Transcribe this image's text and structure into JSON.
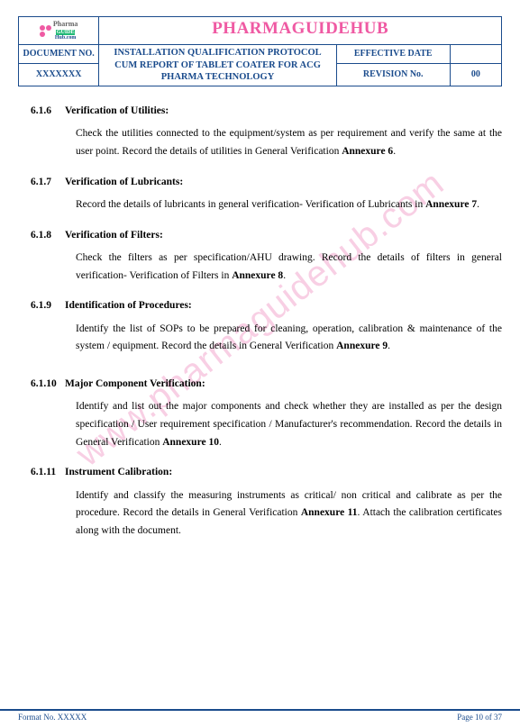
{
  "brand": {
    "title": "PHARMAGUIDEHUB",
    "logo_name_top": "Pharma",
    "logo_name_mid": "GUIDE",
    "logo_name_bot": "Hub.com",
    "dot_colors": [
      "#ef5aa3",
      "#ef5aa3",
      "#ef5aa3",
      "transparent"
    ]
  },
  "header": {
    "doc_no_label": "DOCUMENT NO.",
    "doc_no_value": "XXXXXXX",
    "title": "INSTALLATION QUALIFICATION PROTOCOL CUM REPORT OF TABLET COATER FOR ACG PHARMA TECHNOLOGY",
    "eff_date_label": "EFFECTIVE DATE",
    "eff_date_value": "",
    "rev_label": "REVISION No.",
    "rev_value": "00"
  },
  "watermark": "www.pharmaguidehub.com",
  "sections": [
    {
      "num": "6.1.6",
      "title": "Verification of Utilities:",
      "body_pre": "Check the utilities connected to the equipment/system as per requirement and verify the same at the user point. Record the details of utilities in General Verification ",
      "body_bold": "Annexure 6",
      "body_post": "."
    },
    {
      "num": "6.1.7",
      "title": "Verification of Lubricants:",
      "body_pre": "Record the details of lubricants in general verification- Verification of Lubricants in ",
      "body_bold": "Annexure 7",
      "body_post": "."
    },
    {
      "num": "6.1.8",
      "title": "Verification of Filters:",
      "body_pre": "Check the filters as per specification/AHU drawing. Record the details of filters in general verification- Verification of Filters in ",
      "body_bold": "Annexure 8",
      "body_post": "."
    },
    {
      "num": "6.1.9",
      "title": "Identification of Procedures:",
      "body_pre": "Identify the list of SOPs to be prepared for cleaning, operation, calibration & maintenance of the   system / equipment. Record the details in General Verification ",
      "body_bold": "Annexure 9",
      "body_post": "."
    },
    {
      "num": "6.1.10",
      "title": "Major Component Verification:",
      "body_pre": "Identify and list out the major components and check whether they are installed as per the design specification / User requirement specification / Manufacturer's recommendation. Record the details in General Verification ",
      "body_bold": "Annexure 10",
      "body_post": "."
    },
    {
      "num": "6.1.11",
      "title": "Instrument Calibration:",
      "body_pre": "Identify and classify the measuring instruments as critical/ non critical and calibrate as per the procedure. Record the details in General Verification ",
      "body_bold": "Annexure 11",
      "body_post": ". Attach the calibration certificates along with the document."
    }
  ],
  "footer": {
    "left": "Format No. XXXXX",
    "right": "Page 10 of 37"
  },
  "colors": {
    "accent_pink": "#ef5aa3",
    "border_blue": "#1a4b8c"
  }
}
